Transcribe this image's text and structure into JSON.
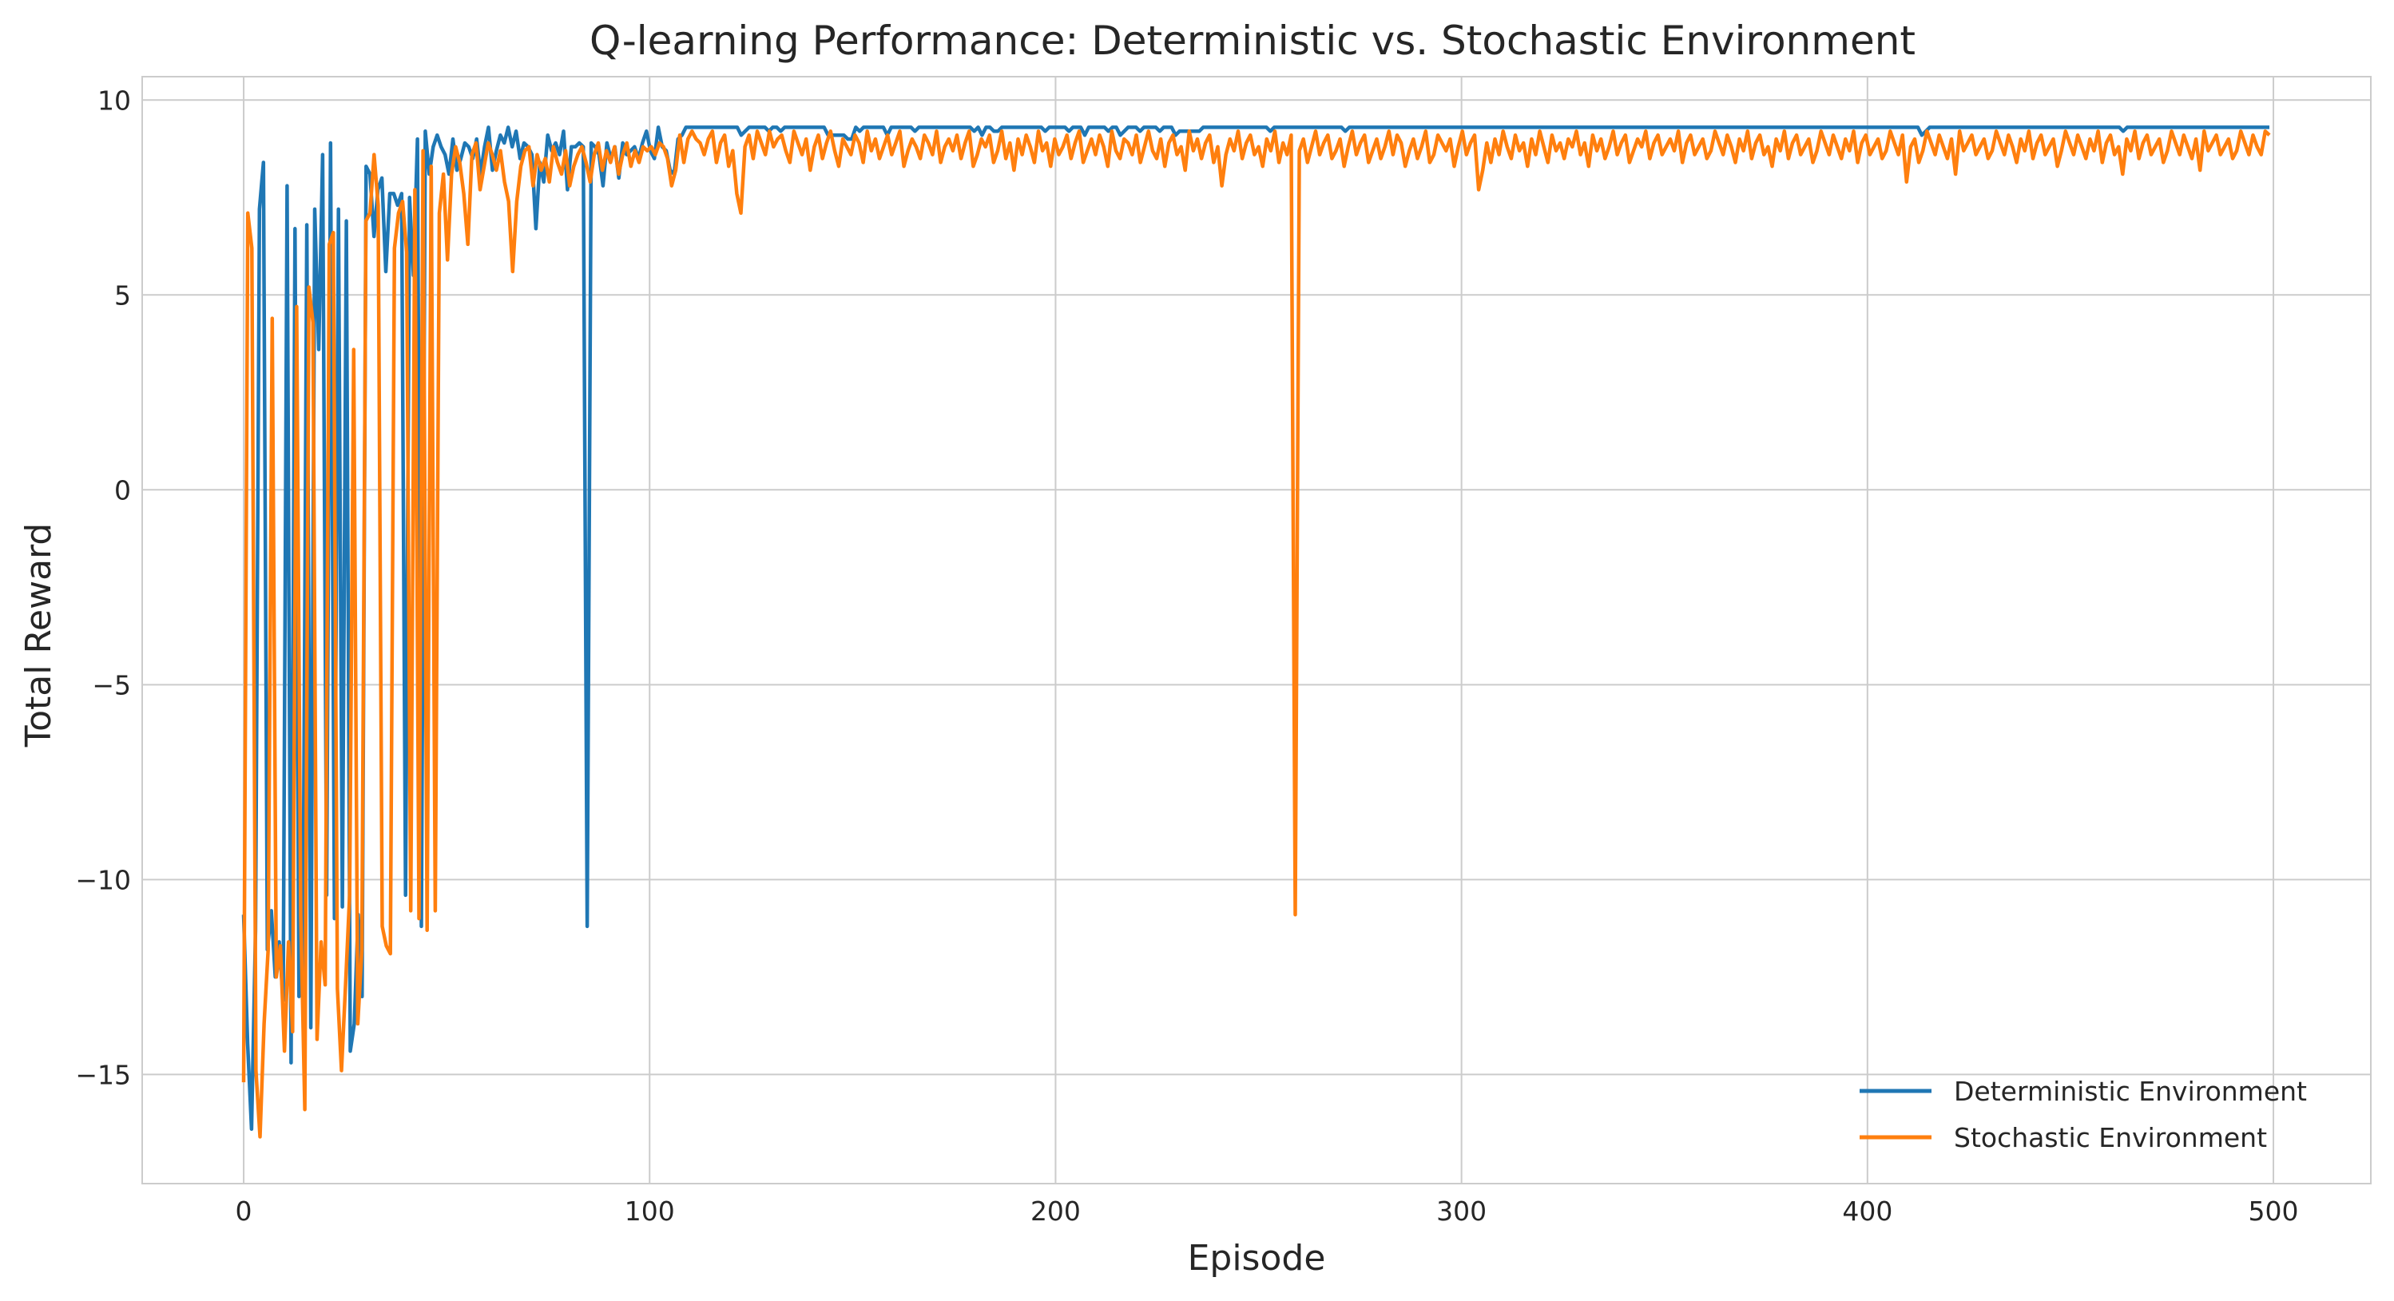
{
  "chart_data": {
    "type": "line",
    "title": "Q-learning Performance: Deterministic vs. Stochastic Environment",
    "xlabel": "Episode",
    "ylabel": "Total Reward",
    "xlim": [
      -25,
      524
    ],
    "ylim": [
      -17.8,
      10.6
    ],
    "x_ticks": [
      0,
      100,
      200,
      300,
      400,
      500
    ],
    "y_ticks": [
      -15,
      -10,
      -5,
      0,
      5,
      10
    ],
    "x_tick_labels": [
      "0",
      "100",
      "200",
      "300",
      "400",
      "500"
    ],
    "y_tick_labels": [
      "−15",
      "−10",
      "−5",
      "0",
      "5",
      "10"
    ],
    "grid": true,
    "legend_position": "lower-right",
    "x_range": [
      0,
      499
    ],
    "series": [
      {
        "name": "Deterministic Environment",
        "color": "#1f77b4",
        "values": [
          -10.9,
          -14.2,
          -16.4,
          -11.3,
          7.2,
          8.4,
          -11.8,
          -10.8,
          -12.5,
          -11.6,
          -13.1,
          7.8,
          -14.7,
          6.7,
          -13.0,
          -12.3,
          6.8,
          -13.8,
          7.2,
          3.6,
          8.6,
          -10.4,
          8.9,
          -11.0,
          7.2,
          -10.7,
          6.9,
          -14.4,
          -13.7,
          -10.9,
          -13.0,
          8.3,
          8.1,
          6.5,
          7.7,
          8.0,
          5.6,
          7.6,
          7.6,
          7.3,
          7.6,
          -10.4,
          7.5,
          5.5,
          9.0,
          -11.2,
          9.2,
          8.1,
          8.8,
          9.1,
          8.8,
          8.6,
          8.1,
          9.0,
          8.2,
          8.5,
          8.9,
          8.8,
          8.5,
          9.0,
          8.1,
          8.8,
          9.3,
          8.2,
          8.7,
          9.1,
          8.9,
          9.3,
          8.8,
          9.2,
          8.5,
          8.9,
          8.8,
          8.6,
          6.7,
          8.4,
          7.9,
          9.1,
          8.7,
          8.9,
          8.6,
          9.2,
          7.7,
          8.8,
          8.8,
          8.9,
          8.8,
          -11.2,
          8.9,
          8.8,
          8.6,
          7.8,
          8.9,
          8.5,
          8.8,
          8.0,
          8.9,
          8.6,
          8.7,
          8.8,
          8.5,
          8.9,
          9.2,
          8.7,
          8.5,
          9.3,
          8.8,
          8.7,
          8.2,
          8.1,
          9.0,
          9.1,
          9.3,
          9.3,
          9.3,
          9.3,
          9.3,
          9.3,
          9.3,
          9.3,
          9.3,
          9.3,
          9.3,
          9.3,
          9.3,
          9.3,
          9.1,
          9.2,
          9.3,
          9.3,
          9.3,
          9.3,
          9.3,
          9.2,
          9.3,
          9.3,
          9.2,
          9.3,
          9.3,
          9.3,
          9.3,
          9.3,
          9.3,
          9.3,
          9.3,
          9.3,
          9.3,
          9.3,
          9.1,
          9.1,
          9.1,
          9.1,
          9.1,
          9.0,
          9.0,
          9.3,
          9.2,
          9.3,
          9.3,
          9.3,
          9.3,
          9.3,
          9.3,
          9.1,
          9.3,
          9.3,
          9.3,
          9.3,
          9.3,
          9.3,
          9.2,
          9.3,
          9.3,
          9.3,
          9.3,
          9.3,
          9.3,
          9.3,
          9.3,
          9.3,
          9.3,
          9.3,
          9.3,
          9.3,
          9.3,
          9.2,
          9.3,
          9.1,
          9.3,
          9.3,
          9.2,
          9.2,
          9.3,
          9.3,
          9.3,
          9.3,
          9.3,
          9.3,
          9.3,
          9.3,
          9.3,
          9.3,
          9.3,
          9.2,
          9.3,
          9.3,
          9.3,
          9.3,
          9.3,
          9.2,
          9.3,
          9.3,
          9.3,
          9.1,
          9.3,
          9.3,
          9.3,
          9.3,
          9.3,
          9.2,
          9.3,
          9.3,
          9.1,
          9.2,
          9.3,
          9.3,
          9.3,
          9.2,
          9.3,
          9.3,
          9.3,
          9.3,
          9.2,
          9.3,
          9.3,
          9.3,
          9.1,
          9.2,
          9.2,
          9.2,
          9.2,
          9.2,
          9.2,
          9.3,
          9.3,
          9.3,
          9.3,
          9.3,
          9.3,
          9.3,
          9.3,
          9.3,
          9.3,
          9.3,
          9.3,
          9.3,
          9.3,
          9.3,
          9.3,
          9.3,
          9.2,
          9.3,
          9.3,
          9.3,
          9.3,
          9.3,
          9.3,
          9.3,
          9.3,
          9.3,
          9.3,
          9.3,
          9.3,
          9.3,
          9.3,
          9.3,
          9.3,
          9.3,
          9.3,
          9.2,
          9.3,
          9.3,
          9.3,
          9.3,
          9.3,
          9.3,
          9.3,
          9.3,
          9.3,
          9.3,
          9.3,
          9.3,
          9.3,
          9.3,
          9.3,
          9.3,
          9.3,
          9.3,
          9.3,
          9.3,
          9.3,
          9.3,
          9.3,
          9.3,
          9.3,
          9.3,
          9.3,
          9.3,
          9.3,
          9.3,
          9.3,
          9.3,
          9.3,
          9.3,
          9.3,
          9.3,
          9.3,
          9.3,
          9.3,
          9.3,
          9.3,
          9.3,
          9.3,
          9.3,
          9.3,
          9.3,
          9.3,
          9.3,
          9.3,
          9.3,
          9.3,
          9.3,
          9.3,
          9.3,
          9.3,
          9.3,
          9.3,
          9.3,
          9.3,
          9.3,
          9.3,
          9.3,
          9.3,
          9.3,
          9.3,
          9.3,
          9.3,
          9.3,
          9.3,
          9.3,
          9.3,
          9.3,
          9.3,
          9.3,
          9.3,
          9.3,
          9.3,
          9.3,
          9.3,
          9.3,
          9.3,
          9.3,
          9.3,
          9.3,
          9.3,
          9.3,
          9.3,
          9.3,
          9.3,
          9.3,
          9.3,
          9.3,
          9.3,
          9.3,
          9.3,
          9.3,
          9.3,
          9.3,
          9.3,
          9.3,
          9.3,
          9.3,
          9.3,
          9.3,
          9.3,
          9.3,
          9.3,
          9.3,
          9.3,
          9.3,
          9.3,
          9.3,
          9.3,
          9.3,
          9.3,
          9.3,
          9.3,
          9.3,
          9.3,
          9.3,
          9.3,
          9.3,
          9.3,
          9.3,
          9.3,
          9.3,
          9.3,
          9.3,
          9.3,
          9.3,
          9.3,
          9.3,
          9.3,
          9.3,
          9.3,
          9.3,
          9.3,
          9.3,
          9.3,
          9.3,
          9.3,
          9.3,
          9.3,
          9.3,
          9.3,
          9.1,
          9.2,
          9.3,
          9.3,
          9.3,
          9.3,
          9.3,
          9.3,
          9.3,
          9.3,
          9.3,
          9.3,
          9.3,
          9.3,
          9.3,
          9.3,
          9.3,
          9.3,
          9.3,
          9.3,
          9.3,
          9.3,
          9.3,
          9.3,
          9.3,
          9.3,
          9.3,
          9.3,
          9.3,
          9.3,
          9.3,
          9.3,
          9.3,
          9.3,
          9.3,
          9.3,
          9.3,
          9.3,
          9.3,
          9.3,
          9.3,
          9.3,
          9.3,
          9.3,
          9.3,
          9.3,
          9.3,
          9.3,
          9.3,
          9.3,
          9.3,
          9.2,
          9.3,
          9.3,
          9.3,
          9.3,
          9.3,
          9.3,
          9.3,
          9.3,
          9.3,
          9.3,
          9.3,
          9.3,
          9.3,
          9.3,
          9.3,
          9.3,
          9.3,
          9.3,
          9.3,
          9.3,
          9.3,
          9.3,
          9.3,
          9.3,
          9.3,
          9.3,
          9.3,
          9.3,
          9.3,
          9.3,
          9.3,
          9.3,
          9.3,
          9.3,
          9.3,
          9.3,
          9.3
        ]
      },
      {
        "name": "Stochastic Environment",
        "color": "#ff7f0e",
        "values": [
          -15.2,
          7.1,
          6.2,
          -14.9,
          -16.6,
          -13.7,
          -11.8,
          4.4,
          -12.5,
          -11.7,
          -14.4,
          -11.6,
          -13.9,
          4.7,
          -10.9,
          -15.9,
          5.2,
          4.3,
          -14.1,
          -11.6,
          -12.7,
          6.3,
          6.6,
          -12.8,
          -14.9,
          -12.7,
          -10.4,
          3.6,
          -13.7,
          -11.8,
          6.9,
          7.1,
          8.6,
          7.3,
          -11.2,
          -11.7,
          -11.9,
          6.2,
          7.1,
          7.4,
          6.1,
          -10.8,
          7.7,
          -11.0,
          8.7,
          -11.3,
          8.3,
          -10.8,
          7.1,
          8.1,
          5.9,
          8.1,
          8.8,
          8.4,
          7.6,
          6.3,
          8.6,
          8.9,
          7.7,
          8.3,
          8.9,
          8.6,
          8.2,
          8.7,
          7.9,
          7.4,
          5.6,
          7.4,
          8.3,
          8.7,
          8.8,
          7.8,
          8.6,
          8.2,
          8.5,
          7.9,
          8.8,
          8.4,
          8.1,
          8.7,
          7.8,
          8.3,
          8.6,
          8.8,
          8.4,
          7.9,
          8.6,
          8.9,
          8.2,
          8.7,
          8.4,
          8.8,
          8.1,
          8.6,
          8.9,
          8.3,
          8.7,
          8.4,
          8.8,
          8.7,
          8.8,
          8.6,
          8.9,
          8.8,
          8.5,
          7.8,
          8.2,
          9.1,
          8.4,
          9.0,
          9.2,
          9.0,
          8.9,
          8.6,
          9.0,
          9.2,
          8.4,
          8.9,
          9.1,
          8.3,
          8.7,
          7.6,
          7.1,
          8.8,
          9.1,
          8.5,
          9.2,
          8.9,
          8.6,
          9.2,
          8.8,
          9.0,
          9.1,
          8.7,
          8.4,
          9.2,
          8.9,
          8.6,
          9.0,
          8.2,
          8.8,
          9.1,
          8.5,
          8.9,
          9.2,
          8.7,
          8.3,
          9.0,
          8.8,
          8.6,
          9.1,
          8.9,
          8.4,
          9.2,
          8.7,
          9.0,
          8.5,
          8.8,
          9.1,
          8.6,
          8.9,
          9.2,
          8.3,
          8.7,
          9.0,
          8.8,
          8.5,
          9.1,
          8.9,
          8.6,
          9.2,
          8.4,
          8.8,
          9.0,
          8.7,
          9.1,
          8.5,
          8.9,
          9.2,
          8.3,
          8.6,
          9.0,
          8.8,
          9.1,
          8.4,
          8.7,
          9.2,
          8.5,
          8.9,
          8.2,
          9.0,
          8.6,
          9.1,
          8.8,
          8.4,
          9.2,
          8.7,
          8.9,
          8.3,
          9.0,
          8.6,
          8.8,
          9.1,
          8.5,
          8.9,
          9.2,
          8.4,
          8.7,
          9.0,
          8.6,
          9.1,
          8.8,
          8.3,
          9.2,
          8.7,
          8.5,
          9.0,
          8.9,
          8.6,
          9.1,
          8.4,
          8.8,
          9.2,
          8.7,
          8.5,
          9.0,
          8.3,
          8.9,
          9.1,
          8.6,
          8.8,
          8.2,
          9.2,
          8.7,
          9.0,
          8.5,
          8.9,
          9.1,
          8.4,
          8.8,
          7.8,
          8.6,
          9.0,
          8.7,
          9.2,
          8.5,
          8.9,
          9.1,
          8.6,
          8.8,
          8.3,
          9.0,
          8.7,
          9.2,
          8.4,
          8.9,
          8.6,
          9.1,
          -10.9,
          8.7,
          9.0,
          8.4,
          8.8,
          9.2,
          8.6,
          8.9,
          9.1,
          8.5,
          8.7,
          9.0,
          8.3,
          8.8,
          9.2,
          8.6,
          8.9,
          9.1,
          8.4,
          8.7,
          9.0,
          8.5,
          8.8,
          9.2,
          8.6,
          9.1,
          8.9,
          8.3,
          8.7,
          9.0,
          8.5,
          8.8,
          9.2,
          8.4,
          8.6,
          9.1,
          8.9,
          8.7,
          9.0,
          8.3,
          8.8,
          9.2,
          8.6,
          8.9,
          9.1,
          7.7,
          8.2,
          8.9,
          8.4,
          9.0,
          8.6,
          9.2,
          8.8,
          8.5,
          9.1,
          8.7,
          8.9,
          8.3,
          9.0,
          8.6,
          9.2,
          8.8,
          8.4,
          9.1,
          8.7,
          8.9,
          8.5,
          9.0,
          8.8,
          9.2,
          8.6,
          8.9,
          8.3,
          9.1,
          8.7,
          9.0,
          8.5,
          8.8,
          9.2,
          8.6,
          8.9,
          9.1,
          8.4,
          8.7,
          9.0,
          8.8,
          9.2,
          8.5,
          8.9,
          9.1,
          8.6,
          8.8,
          9.0,
          8.7,
          9.2,
          8.4,
          8.9,
          9.1,
          8.6,
          8.8,
          9.0,
          8.5,
          8.7,
          9.2,
          8.9,
          8.6,
          9.1,
          8.8,
          8.4,
          9.0,
          8.7,
          9.2,
          8.5,
          8.9,
          9.1,
          8.6,
          8.8,
          8.3,
          9.0,
          8.7,
          9.2,
          8.5,
          8.9,
          9.1,
          8.6,
          8.8,
          9.0,
          8.4,
          8.7,
          9.2,
          8.9,
          8.6,
          9.1,
          8.8,
          8.5,
          9.0,
          8.7,
          9.2,
          8.4,
          8.9,
          9.1,
          8.6,
          8.8,
          9.0,
          8.5,
          8.7,
          9.2,
          8.9,
          8.6,
          9.1,
          7.9,
          8.8,
          9.0,
          8.4,
          8.7,
          9.2,
          8.9,
          8.6,
          9.1,
          8.8,
          8.5,
          9.0,
          8.1,
          9.2,
          8.7,
          8.9,
          9.1,
          8.6,
          8.8,
          9.0,
          8.5,
          8.7,
          9.2,
          8.9,
          8.6,
          9.1,
          8.8,
          8.4,
          9.0,
          8.7,
          9.2,
          8.5,
          8.9,
          9.1,
          8.6,
          8.8,
          9.0,
          8.3,
          8.7,
          9.2,
          8.9,
          8.6,
          9.1,
          8.8,
          8.5,
          9.0,
          8.7,
          9.2,
          8.4,
          8.9,
          9.1,
          8.6,
          8.8,
          8.1,
          9.0,
          8.7,
          9.2,
          8.5,
          8.9,
          9.1,
          8.6,
          8.8,
          9.0,
          8.4,
          8.7,
          9.2,
          8.9,
          8.6,
          9.1,
          8.8,
          8.5,
          9.0,
          8.2,
          9.2,
          8.7,
          8.9,
          9.1,
          8.6,
          8.8,
          9.0,
          8.5,
          8.7,
          9.2,
          8.9,
          8.6,
          9.1,
          8.8,
          8.6,
          9.2,
          9.1
        ]
      }
    ]
  }
}
